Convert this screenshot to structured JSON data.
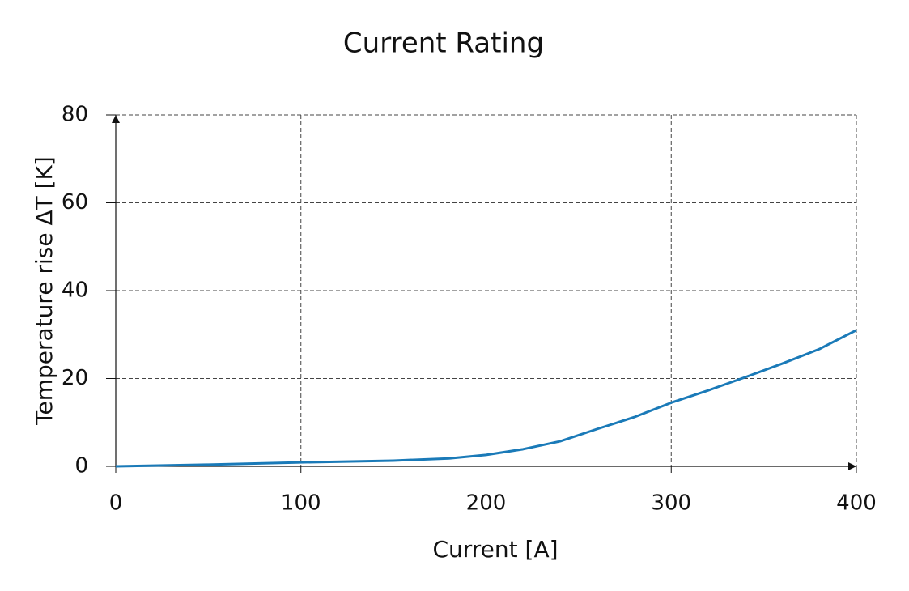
{
  "chart_data": {
    "type": "line",
    "title": "Current Rating",
    "x_label": "Current [A]",
    "y_label": "Temperature rise ΔT [K]",
    "x": [
      0,
      50,
      100,
      150,
      180,
      200,
      220,
      240,
      260,
      280,
      300,
      320,
      340,
      360,
      380,
      400
    ],
    "series": [
      {
        "name": "Temperature rise",
        "color": "#1a7ab8",
        "values": [
          0,
          0.4,
          0.9,
          1.3,
          1.8,
          2.6,
          3.9,
          5.7,
          8.5,
          11.2,
          14.5,
          17.3,
          20.3,
          23.4,
          26.7,
          31
        ]
      }
    ],
    "xlim": [
      0,
      400
    ],
    "xticks": [
      0,
      100,
      200,
      300,
      400
    ],
    "ylim": [
      0,
      80
    ],
    "yticks": [
      0,
      20,
      40,
      60,
      80
    ],
    "grid": true,
    "legend": false
  }
}
